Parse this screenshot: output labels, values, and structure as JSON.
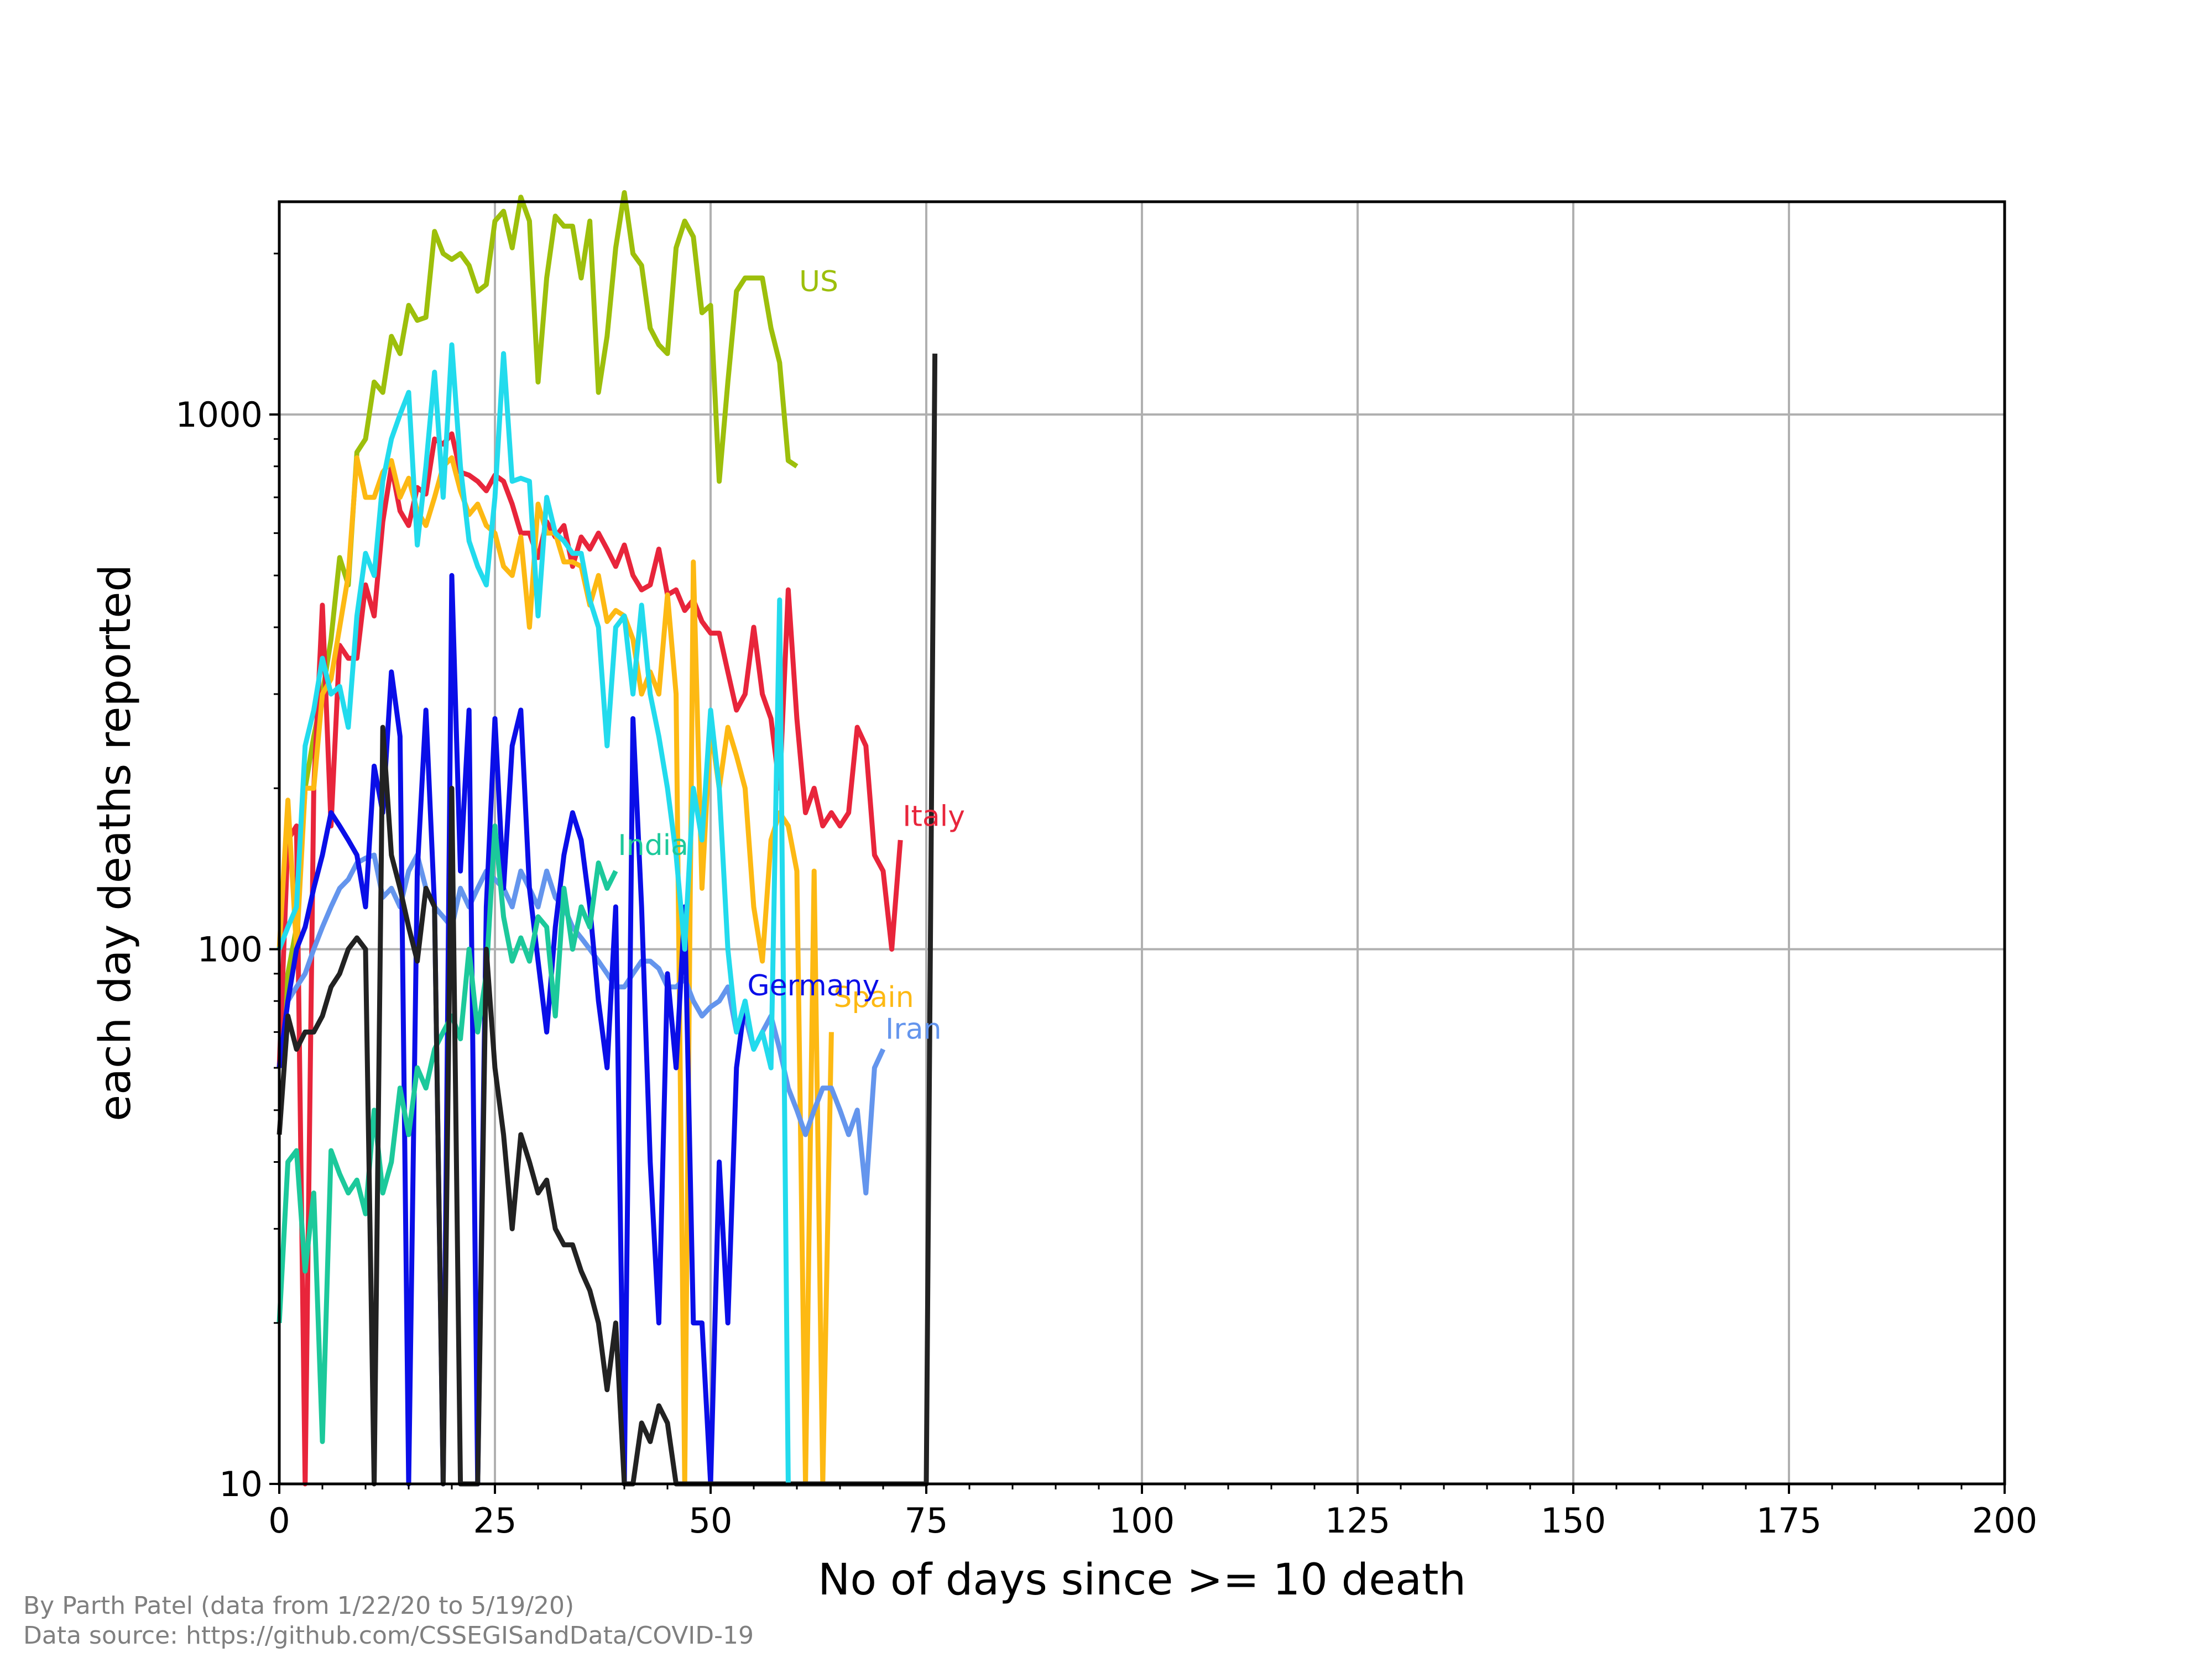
{
  "chart_data": {
    "type": "line",
    "title": "",
    "xlabel": "No of days since >= 10 death",
    "ylabel": "each day deaths reported",
    "xlim": [
      0,
      200
    ],
    "ylim": [
      10,
      2500
    ],
    "yscale": "log",
    "xticks": [
      0,
      25,
      50,
      75,
      100,
      125,
      150,
      175,
      200
    ],
    "yticks": [
      10,
      100,
      1000
    ],
    "xtick_labels": [
      "0",
      "25",
      "50",
      "75",
      "100",
      "125",
      "150",
      "175",
      "200"
    ],
    "ytick_labels": [
      "10",
      "100",
      "1000"
    ],
    "grid": true,
    "legend": "inline labels at line ends",
    "series": [
      {
        "name": "US",
        "color": "#9dbf0b",
        "label_at": [
          60,
          1700
        ],
        "x": [
          0,
          1,
          2,
          3,
          4,
          5,
          6,
          7,
          8,
          9,
          10,
          11,
          12,
          13,
          14,
          15,
          16,
          17,
          18,
          19,
          20,
          21,
          22,
          23,
          24,
          25,
          26,
          27,
          28,
          29,
          30,
          31,
          32,
          33,
          34,
          35,
          36,
          37,
          38,
          39,
          40,
          41,
          42,
          43,
          44,
          45,
          46,
          47,
          48,
          49,
          50,
          51,
          52,
          53,
          54,
          55,
          56,
          57,
          58,
          59,
          60
        ],
        "y": [
          60,
          90,
          110,
          200,
          250,
          300,
          380,
          540,
          480,
          850,
          900,
          1150,
          1100,
          1400,
          1300,
          1600,
          1500,
          1520,
          2200,
          2000,
          1950,
          2000,
          1900,
          1700,
          1750,
          2300,
          2400,
          2050,
          2550,
          2300,
          1150,
          1800,
          2350,
          2250,
          2250,
          1800,
          2300,
          1100,
          1400,
          2050,
          2600,
          2000,
          1900,
          1450,
          1350,
          1300,
          2050,
          2300,
          2150,
          1550,
          1600,
          750,
          1150,
          1700,
          1800,
          1800,
          1800,
          1450,
          1250,
          820,
          800
        ]
      },
      {
        "name": "Italy",
        "color": "#e8253b",
        "label_at": [
          72,
          170
        ],
        "x": [
          0,
          1,
          2,
          3,
          4,
          5,
          6,
          7,
          8,
          9,
          10,
          11,
          12,
          13,
          14,
          15,
          16,
          17,
          18,
          19,
          20,
          21,
          22,
          23,
          24,
          25,
          26,
          27,
          28,
          29,
          30,
          31,
          32,
          33,
          34,
          35,
          36,
          37,
          38,
          39,
          40,
          41,
          42,
          43,
          44,
          45,
          46,
          47,
          48,
          49,
          50,
          51,
          52,
          53,
          54,
          55,
          56,
          57,
          58,
          59,
          60,
          61,
          62,
          63,
          64,
          65,
          66,
          67,
          68,
          69,
          70,
          71,
          72
        ],
        "y": [
          60,
          160,
          170,
          10,
          200,
          440,
          170,
          370,
          350,
          350,
          480,
          420,
          630,
          800,
          660,
          620,
          730,
          710,
          900,
          880,
          920,
          780,
          770,
          750,
          720,
          770,
          750,
          680,
          600,
          600,
          540,
          630,
          590,
          620,
          520,
          590,
          560,
          600,
          560,
          520,
          570,
          500,
          470,
          480,
          560,
          460,
          470,
          430,
          450,
          410,
          390,
          390,
          330,
          280,
          300,
          400,
          300,
          270,
          200,
          470,
          270,
          180,
          200,
          170,
          180,
          170,
          180,
          260,
          240,
          150,
          140,
          100,
          160
        ]
      },
      {
        "name": "Spain",
        "color": "#fdb913",
        "label_at": [
          64,
          78
        ],
        "x": [
          0,
          1,
          2,
          3,
          4,
          5,
          6,
          7,
          8,
          9,
          10,
          11,
          12,
          13,
          14,
          15,
          16,
          17,
          18,
          19,
          20,
          21,
          22,
          23,
          24,
          25,
          26,
          27,
          28,
          29,
          30,
          31,
          32,
          33,
          34,
          35,
          36,
          37,
          38,
          39,
          40,
          41,
          42,
          43,
          44,
          45,
          46,
          47,
          48,
          49,
          50,
          51,
          52,
          53,
          54,
          55,
          56,
          57,
          58,
          59,
          60,
          61,
          62,
          63,
          64
        ],
        "y": [
          100,
          190,
          100,
          200,
          200,
          300,
          320,
          400,
          500,
          830,
          700,
          700,
          780,
          820,
          700,
          760,
          660,
          620,
          700,
          800,
          830,
          720,
          650,
          680,
          620,
          600,
          520,
          500,
          590,
          400,
          680,
          600,
          600,
          530,
          530,
          520,
          440,
          500,
          410,
          430,
          420,
          380,
          300,
          330,
          300,
          460,
          300,
          10,
          530,
          130,
          260,
          200,
          260,
          230,
          200,
          120,
          95,
          160,
          180,
          170,
          140,
          10,
          140,
          10,
          70
        ]
      },
      {
        "name": "Iran",
        "color": "#6495ed",
        "label_at": [
          70,
          68
        ],
        "x": [
          0,
          1,
          2,
          3,
          4,
          5,
          6,
          7,
          8,
          9,
          10,
          11,
          12,
          13,
          14,
          15,
          16,
          17,
          18,
          19,
          20,
          21,
          22,
          23,
          24,
          25,
          26,
          27,
          28,
          29,
          30,
          31,
          32,
          33,
          34,
          35,
          36,
          37,
          38,
          39,
          40,
          41,
          42,
          43,
          44,
          45,
          46,
          47,
          48,
          49,
          50,
          51,
          52,
          53,
          54,
          55,
          56,
          57,
          58,
          59,
          60,
          61,
          62,
          63,
          64,
          65,
          66,
          67,
          68,
          69,
          70
        ],
        "y": [
          60,
          80,
          85,
          90,
          100,
          110,
          120,
          130,
          135,
          145,
          148,
          150,
          125,
          130,
          120,
          140,
          150,
          130,
          120,
          115,
          110,
          130,
          120,
          130,
          140,
          135,
          130,
          120,
          140,
          130,
          120,
          140,
          125,
          120,
          110,
          105,
          100,
          95,
          90,
          85,
          85,
          90,
          95,
          95,
          92,
          85,
          85,
          88,
          80,
          75,
          78,
          80,
          85,
          70,
          75,
          65,
          70,
          75,
          65,
          55,
          50,
          45,
          50,
          55,
          55,
          50,
          45,
          50,
          35,
          60,
          65
        ]
      },
      {
        "name": "Germany",
        "color": "#0a0ee8",
        "label_at": [
          54,
          82
        ],
        "x": [
          0,
          1,
          2,
          3,
          4,
          5,
          6,
          7,
          8,
          9,
          10,
          11,
          12,
          13,
          14,
          15,
          16,
          17,
          18,
          19,
          20,
          21,
          22,
          23,
          24,
          25,
          26,
          27,
          28,
          29,
          30,
          31,
          32,
          33,
          34,
          35,
          36,
          37,
          38,
          39,
          40,
          41,
          42,
          43,
          44,
          45,
          46,
          47,
          48,
          49,
          50,
          51,
          52,
          53,
          54
        ],
        "y": [
          60,
          80,
          100,
          110,
          130,
          150,
          180,
          170,
          160,
          150,
          120,
          220,
          180,
          330,
          250,
          10,
          140,
          280,
          120,
          10,
          500,
          140,
          280,
          10,
          120,
          270,
          130,
          240,
          280,
          130,
          95,
          70,
          110,
          150,
          180,
          160,
          120,
          80,
          60,
          120,
          10,
          270,
          120,
          40,
          20,
          90,
          60,
          120,
          20,
          20,
          10,
          40,
          20,
          60,
          80
        ]
      },
      {
        "name": "India",
        "color": "#1cc99b",
        "label_at": [
          39,
          150
        ],
        "x": [
          0,
          1,
          2,
          3,
          4,
          5,
          6,
          7,
          8,
          9,
          10,
          11,
          12,
          13,
          14,
          15,
          16,
          17,
          18,
          19,
          20,
          21,
          22,
          23,
          24,
          25,
          26,
          27,
          28,
          29,
          30,
          31,
          32,
          33,
          34,
          35,
          36,
          37,
          38,
          39
        ],
        "y": [
          20,
          40,
          42,
          25,
          35,
          12,
          42,
          38,
          35,
          37,
          32,
          50,
          35,
          40,
          55,
          45,
          60,
          55,
          65,
          70,
          75,
          68,
          100,
          70,
          90,
          170,
          115,
          95,
          105,
          95,
          115,
          110,
          75,
          130,
          100,
          120,
          110,
          145,
          130,
          140
        ]
      },
      {
        "name": "",
        "color": "#222222",
        "x": [
          0,
          1,
          2,
          3,
          4,
          5,
          6,
          7,
          8,
          9,
          10,
          11,
          12,
          13,
          14,
          15,
          16,
          17,
          18,
          19,
          20,
          21,
          22,
          23,
          24,
          25,
          26,
          27,
          28,
          29,
          30,
          31,
          32,
          33,
          34,
          35,
          36,
          37,
          38,
          39,
          40,
          41,
          42,
          43,
          44,
          45,
          46,
          47,
          48,
          49,
          50,
          51,
          52,
          53,
          54,
          55,
          56,
          57,
          58,
          59,
          60,
          61,
          62,
          63,
          64,
          65,
          66,
          67,
          68,
          69,
          70,
          71,
          72,
          73,
          74,
          75,
          76
        ],
        "y": [
          45,
          75,
          65,
          70,
          70,
          75,
          85,
          90,
          100,
          105,
          100,
          10,
          260,
          150,
          130,
          110,
          95,
          130,
          120,
          10,
          200,
          10,
          10,
          10,
          100,
          60,
          45,
          30,
          45,
          40,
          35,
          37,
          30,
          28,
          28,
          25,
          23,
          20,
          15,
          20,
          10,
          10,
          13,
          12,
          14,
          13,
          10,
          10,
          10,
          10,
          10,
          10,
          10,
          10,
          10,
          10,
          10,
          10,
          10,
          10,
          10,
          10,
          10,
          10,
          10,
          10,
          10,
          10,
          10,
          10,
          10,
          10,
          10,
          10,
          10,
          10,
          1300
        ]
      },
      {
        "name": "",
        "color": "#22dbed",
        "x": [
          0,
          1,
          2,
          3,
          4,
          5,
          6,
          7,
          8,
          9,
          10,
          11,
          12,
          13,
          14,
          15,
          16,
          17,
          18,
          19,
          20,
          21,
          22,
          23,
          24,
          25,
          26,
          27,
          28,
          29,
          30,
          31,
          32,
          33,
          34,
          35,
          36,
          37,
          38,
          39,
          40,
          41,
          42,
          43,
          44,
          45,
          46,
          47,
          48,
          49,
          50,
          51,
          52,
          53,
          54,
          55,
          56,
          57,
          58,
          59
        ],
        "y": [
          100,
          110,
          120,
          240,
          280,
          350,
          300,
          310,
          260,
          420,
          550,
          500,
          750,
          900,
          1000,
          1100,
          570,
          800,
          1200,
          700,
          1350,
          800,
          580,
          520,
          480,
          700,
          1300,
          750,
          760,
          750,
          420,
          700,
          600,
          580,
          550,
          550,
          450,
          400,
          240,
          400,
          420,
          300,
          440,
          300,
          250,
          200,
          150,
          100,
          200,
          160,
          280,
          200,
          100,
          70,
          80,
          65,
          70,
          60,
          450,
          10
        ]
      }
    ]
  },
  "credits": {
    "line1": "By Parth Patel (data from 1/22/20 to 5/19/20)",
    "line2": "Data source: https://github.com/CSSEGISandData/COVID-19"
  }
}
